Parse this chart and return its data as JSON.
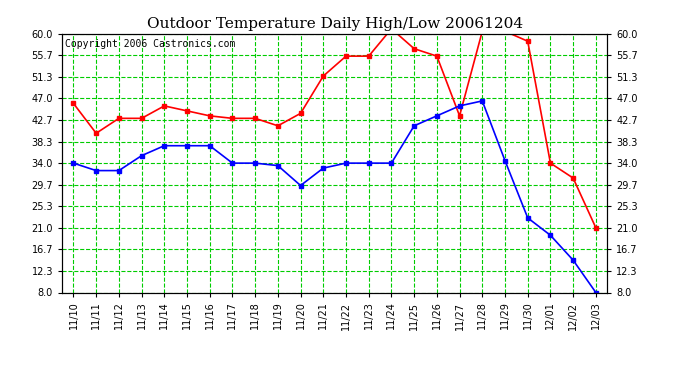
{
  "title": "Outdoor Temperature Daily High/Low 20061204",
  "copyright": "Copyright 2006 Castronics.com",
  "x_labels": [
    "11/10",
    "11/11",
    "11/12",
    "11/13",
    "11/14",
    "11/15",
    "11/16",
    "11/17",
    "11/18",
    "11/19",
    "11/20",
    "11/21",
    "11/22",
    "11/23",
    "11/24",
    "11/25",
    "11/26",
    "11/27",
    "11/28",
    "11/29",
    "11/30",
    "12/01",
    "12/02",
    "12/03"
  ],
  "high_temps": [
    46.0,
    40.0,
    43.0,
    43.0,
    45.5,
    44.5,
    43.5,
    43.0,
    43.0,
    41.5,
    44.0,
    51.5,
    55.5,
    55.5,
    61.0,
    57.0,
    55.5,
    43.5,
    60.5,
    60.5,
    58.5,
    34.0,
    31.0,
    21.0
  ],
  "low_temps": [
    34.0,
    32.5,
    32.5,
    35.5,
    37.5,
    37.5,
    37.5,
    34.0,
    34.0,
    33.5,
    29.5,
    33.0,
    34.0,
    34.0,
    34.0,
    41.5,
    43.5,
    45.5,
    46.5,
    34.5,
    23.0,
    19.5,
    14.5,
    8.0
  ],
  "high_color": "#ff0000",
  "low_color": "#0000ff",
  "grid_color": "#00cc00",
  "background_color": "#ffffff",
  "y_ticks": [
    8.0,
    12.3,
    16.7,
    21.0,
    25.3,
    29.7,
    34.0,
    38.3,
    42.7,
    47.0,
    51.3,
    55.7,
    60.0
  ],
  "y_min": 8.0,
  "y_max": 60.0,
  "title_fontsize": 11,
  "copyright_fontsize": 7,
  "marker": "s",
  "marker_size": 3,
  "line_width": 1.2
}
